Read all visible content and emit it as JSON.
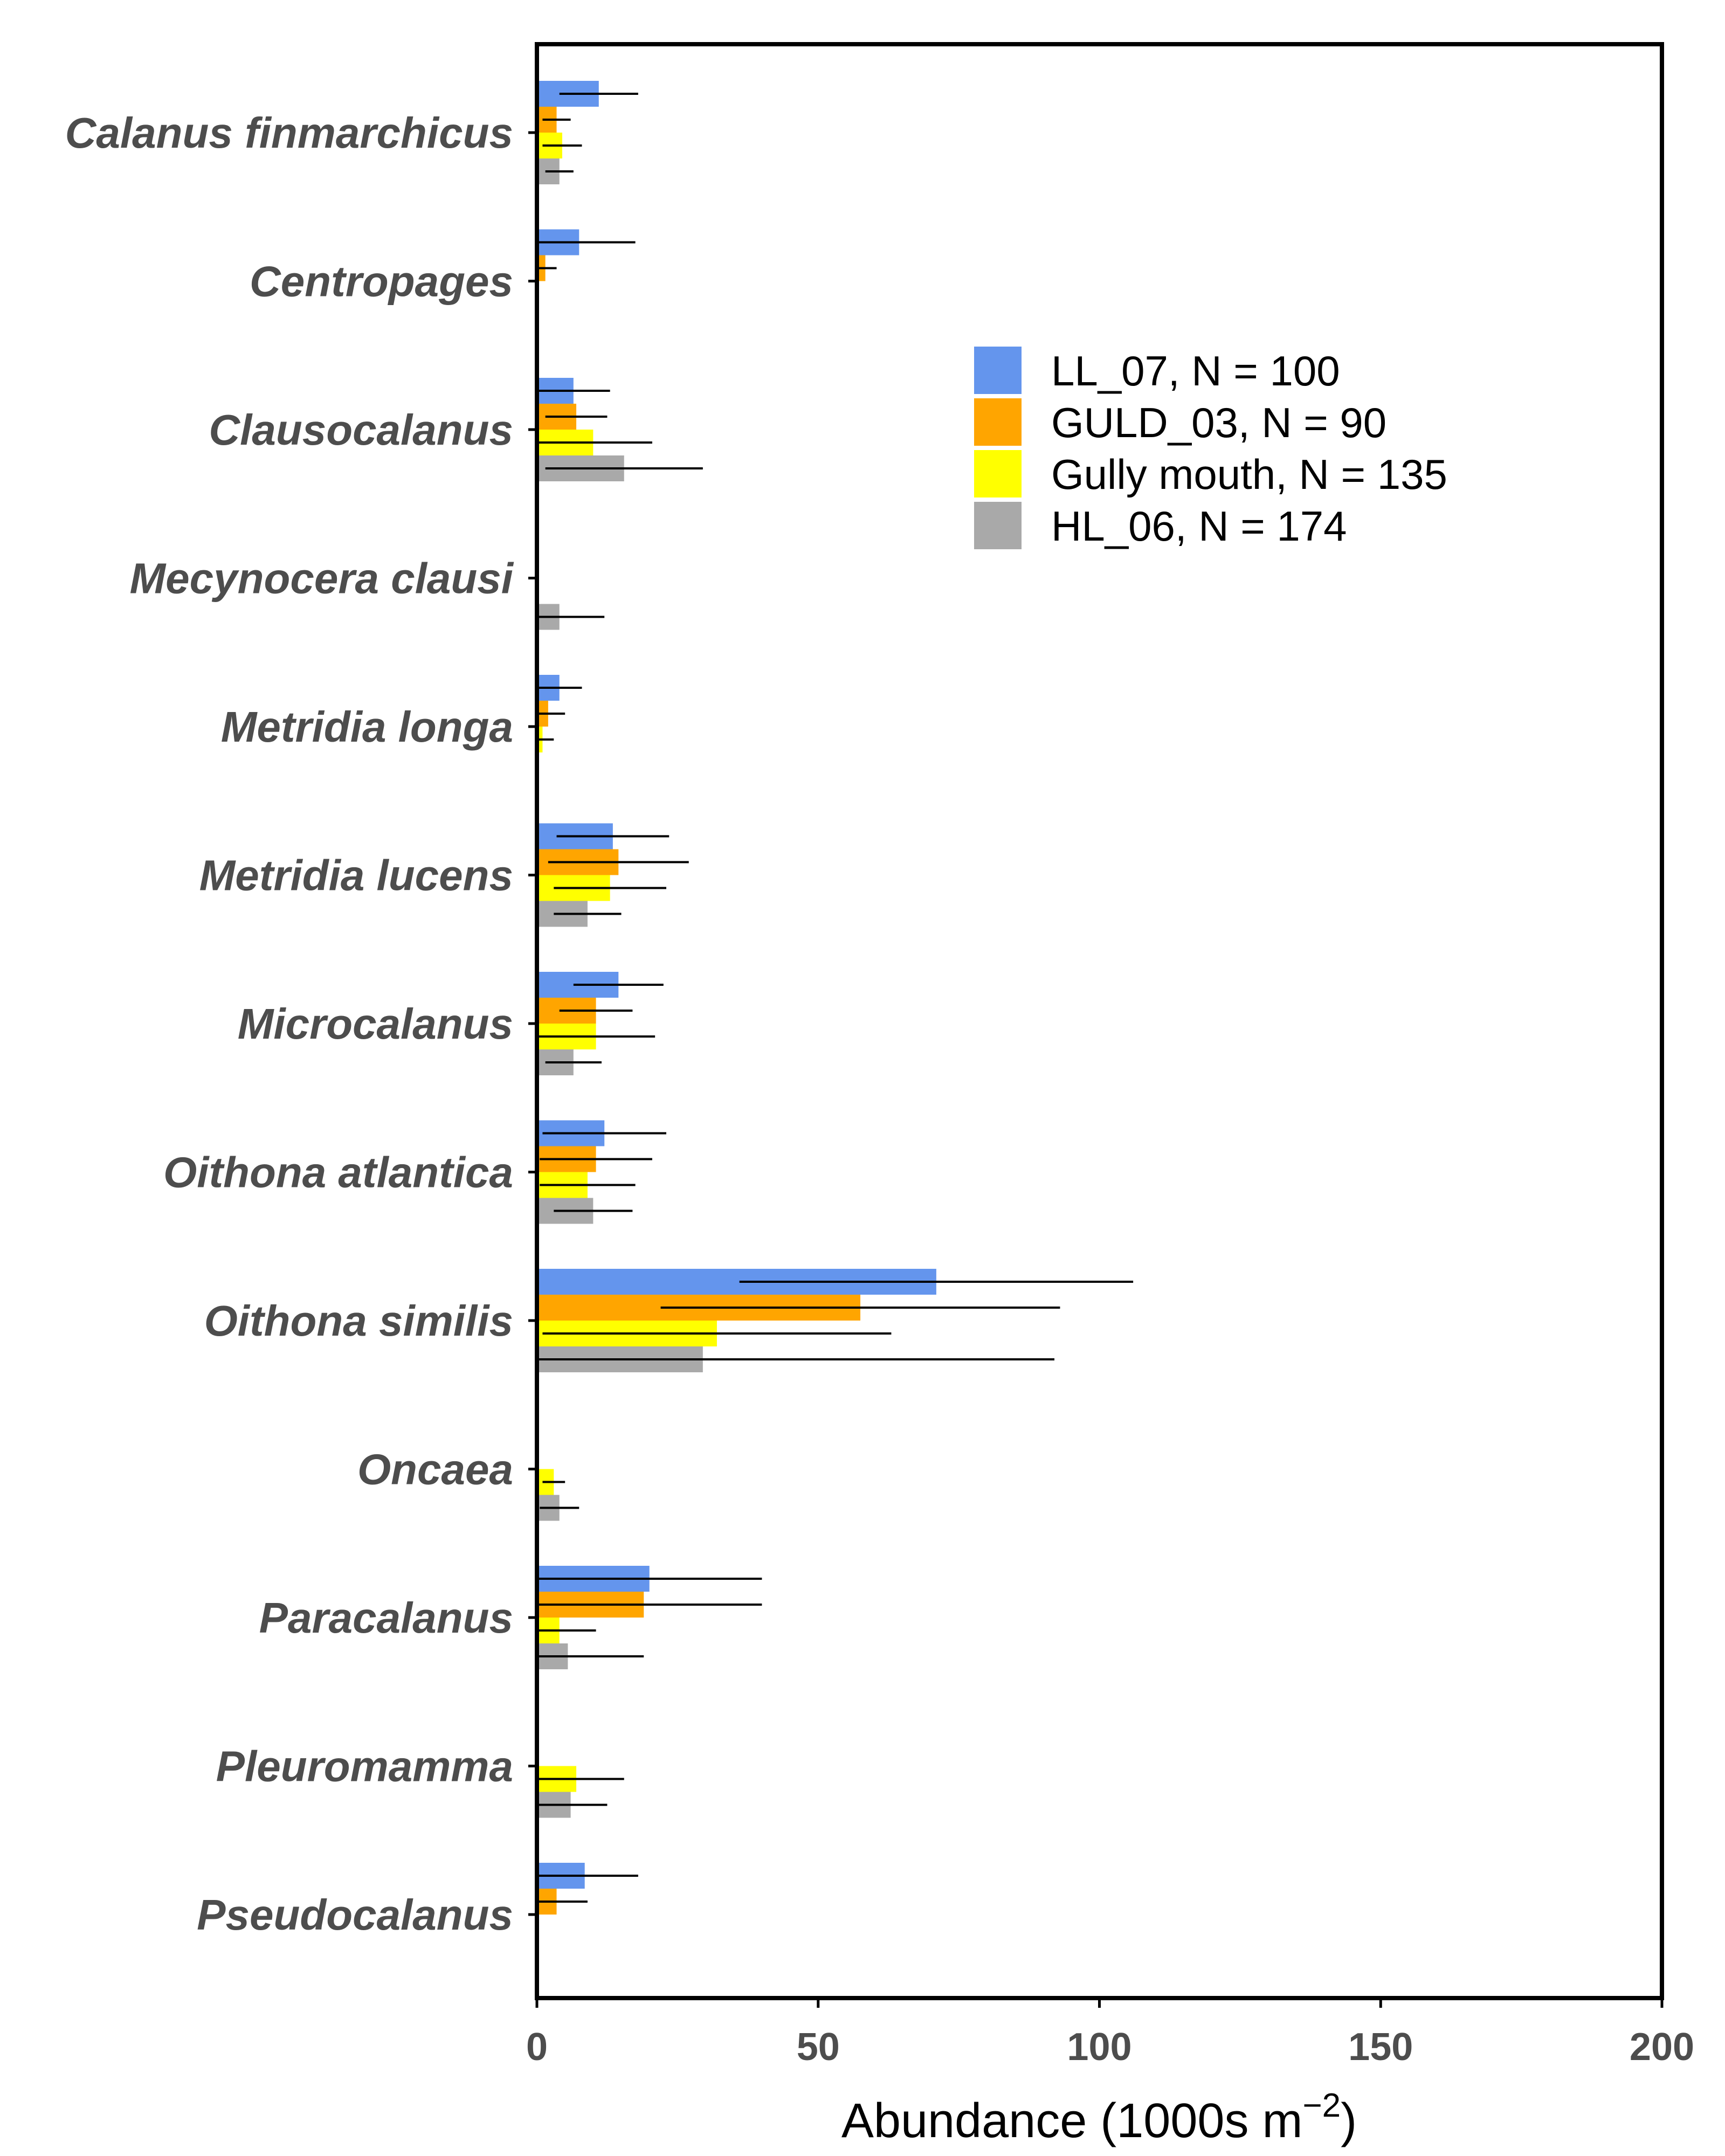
{
  "chart_data": {
    "type": "bar",
    "orientation": "horizontal",
    "xlabel": "Abundance (1000s m",
    "xlabel_superscript": "−2",
    "xlabel_suffix": ")",
    "xlim": [
      0,
      200
    ],
    "xticks": [
      "0",
      "50",
      "100",
      "150",
      "200"
    ],
    "legend_position": "upper-right",
    "grid": false,
    "categories": [
      "Calanus finmarchicus",
      "Centropages",
      "Clausocalanus",
      "Mecynocera clausi",
      "Metridia longa",
      "Metridia lucens",
      "Microcalanus",
      "Oithona atlantica",
      "Oithona similis",
      "Oncaea",
      "Paracalanus",
      "Pleuromamma",
      "Pseudocalanus"
    ],
    "series": [
      {
        "name": "LL_07, N = 100",
        "color": "#6495ED",
        "values": [
          11,
          7.5,
          6.5,
          0,
          4,
          13.5,
          14.5,
          12,
          71,
          0,
          20,
          0,
          8.5
        ],
        "error": [
          7,
          10,
          6.5,
          0,
          4,
          10,
          8,
          11,
          35,
          0,
          20,
          0,
          9.5
        ]
      },
      {
        "name": "GULD_03, N = 90",
        "color": "#FFA500",
        "values": [
          3.5,
          1.5,
          7,
          0,
          2,
          14.5,
          10.5,
          10.5,
          57.5,
          0,
          19,
          0,
          3.5
        ],
        "error": [
          2.5,
          2,
          5.5,
          0,
          3,
          12.5,
          6.5,
          10,
          35.5,
          0,
          21,
          0,
          5.5
        ]
      },
      {
        "name": "Gully mouth, N = 135",
        "color": "#FFFF00",
        "values": [
          4.5,
          0,
          10,
          0,
          1,
          13,
          10.5,
          9,
          32,
          3,
          4,
          7,
          0
        ],
        "error": [
          3.5,
          0,
          10.5,
          0,
          2,
          10,
          10.5,
          8.5,
          31,
          2,
          6.5,
          8.5,
          0
        ]
      },
      {
        "name": "HL_06, N = 174",
        "color": "#A9A9A9",
        "values": [
          4,
          0,
          15.5,
          4,
          0,
          9,
          6.5,
          10,
          29.5,
          4,
          5.5,
          6,
          0
        ],
        "error": [
          2.5,
          0,
          14,
          8,
          0,
          6,
          5,
          7,
          62.5,
          3.5,
          13.5,
          6.5,
          0
        ]
      }
    ]
  }
}
